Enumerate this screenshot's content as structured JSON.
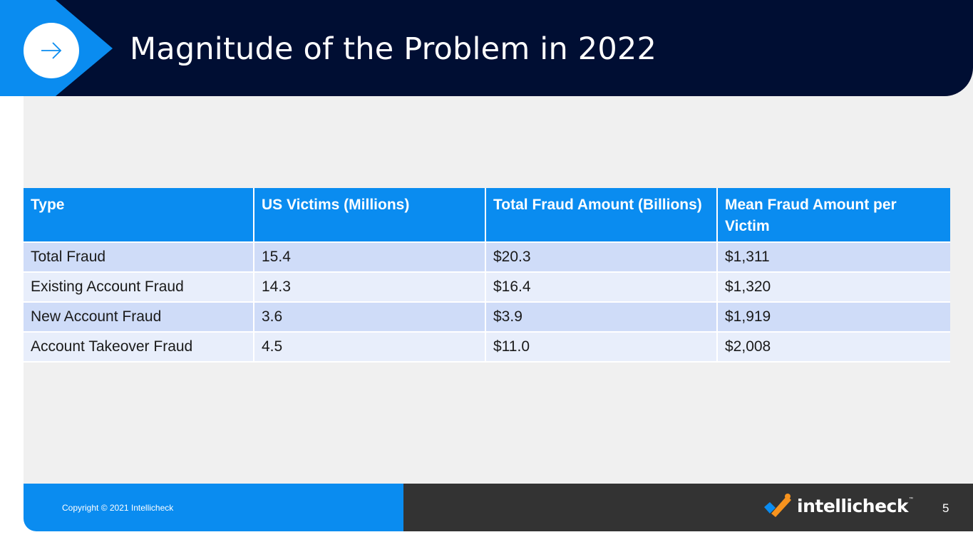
{
  "slide": {
    "title": "Magnitude of the Problem in 2022",
    "page_number": "5"
  },
  "table": {
    "headers": [
      "Type",
      "US Victims (Millions)",
      "Total Fraud Amount (Billions)",
      "Mean Fraud Amount per Victim"
    ],
    "rows": [
      [
        "Total Fraud",
        "15.4",
        "$20.3",
        "$1,311"
      ],
      [
        "Existing Account Fraud",
        "14.3",
        "$16.4",
        "$1,320"
      ],
      [
        "New Account Fraud",
        "3.6",
        "$3.9",
        "$1,919"
      ],
      [
        "Account Takeover Fraud",
        "4.5",
        "$11.0",
        "$2,008"
      ]
    ]
  },
  "footer": {
    "copyright": "Copyright © 2021 Intellicheck",
    "logo_text": "intellicheck",
    "logo_tm": "™"
  },
  "icons": {
    "header": "arrow-right-icon",
    "logo": "intellicheck-check-icon"
  },
  "colors": {
    "header_bg": "#000e33",
    "accent_blue": "#0a8cf0",
    "row_odd": "#cfdcf8",
    "row_even": "#e8eefb",
    "footer_dark": "#333333",
    "logo_orange": "#f7931e"
  }
}
